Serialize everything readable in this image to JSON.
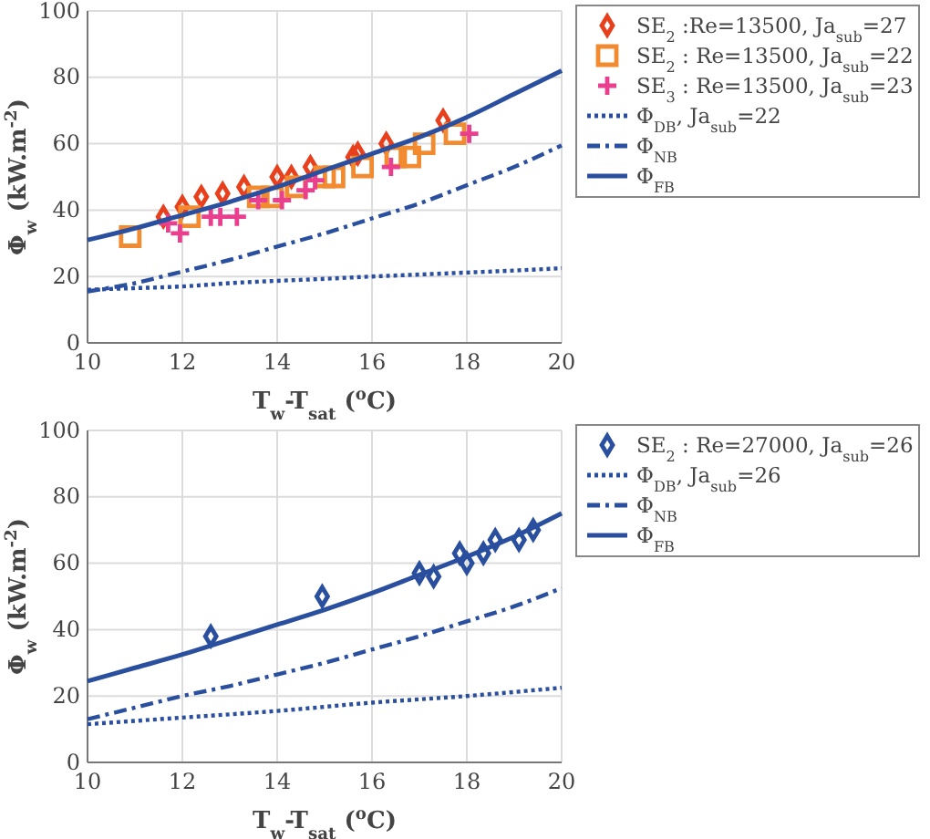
{
  "chart_data": [
    {
      "type": "scatter",
      "xlabel": "T$_{w}$-T$_{sat}$ ($^{o}$C)",
      "ylabel": "Φ$_{w}$ (kW.m$^{-2}$)",
      "xlim": [
        10,
        20
      ],
      "ylim": [
        0,
        100
      ],
      "xticks": [
        10,
        12,
        14,
        16,
        18,
        20
      ],
      "yticks": [
        0,
        20,
        40,
        60,
        80,
        100
      ],
      "grid": true,
      "legend": "top right",
      "series": [
        {
          "name": "SE$_{2}$ :Re=13500, Ja$_{sub}$=27",
          "marker": "diamond",
          "color": "#e8401c",
          "x": [
            11.6,
            12.0,
            12.4,
            12.85,
            13.3,
            14.0,
            14.3,
            14.7,
            15.6,
            15.7,
            16.3,
            17.5
          ],
          "values": [
            38,
            41,
            44,
            45,
            47,
            50,
            50,
            53,
            56,
            57,
            60,
            67
          ]
        },
        {
          "name": "SE$_{2}$ : Re=13500, Ja$_{sub}$=22",
          "marker": "square",
          "color": "#f28a30",
          "x": [
            10.9,
            12.15,
            13.6,
            13.9,
            14.4,
            15.0,
            15.2,
            15.8,
            16.5,
            16.8,
            17.1,
            17.75
          ],
          "values": [
            32,
            38,
            44,
            44,
            47,
            50,
            50,
            53,
            56,
            56,
            60,
            63
          ]
        },
        {
          "name": "SE$_{3}$ : Re=13500, Ja$_{sub}$=23",
          "marker": "cross",
          "color": "#ea3f8f",
          "x": [
            11.7,
            11.95,
            12.6,
            12.8,
            13.15,
            13.6,
            14.1,
            14.6,
            14.8,
            16.4,
            18.05
          ],
          "values": [
            36,
            33,
            38,
            38,
            38,
            43,
            43,
            46,
            49,
            53,
            63
          ]
        },
        {
          "name": "Φ$_{DB}$, Ja$_{sub}$=22",
          "type": "line",
          "line_style": "dotted",
          "color": "#2a4f9e",
          "x": [
            10,
            11,
            12,
            13,
            14,
            15,
            16,
            17,
            18,
            19,
            20
          ],
          "values": [
            16,
            16.5,
            17,
            18,
            18.7,
            19.3,
            20,
            20.6,
            21.2,
            21.8,
            22.5
          ]
        },
        {
          "name": "Φ$_{NB}$",
          "type": "line",
          "line_style": "dashed",
          "color": "#2a4f9e",
          "x": [
            10,
            11,
            12,
            13,
            14,
            15,
            16,
            17,
            18,
            19,
            20
          ],
          "values": [
            15.5,
            18,
            21.5,
            25,
            29,
            33,
            37.5,
            42,
            47.5,
            53,
            59.5
          ]
        },
        {
          "name": "Φ$_{FB}$",
          "type": "line",
          "line_style": "solid",
          "color": "#2a4f9e",
          "x": [
            10,
            11,
            12,
            13,
            14,
            15,
            16,
            17,
            18,
            19,
            20
          ],
          "values": [
            31,
            34.5,
            38.5,
            42.5,
            47,
            52,
            57,
            62,
            68,
            75,
            82
          ]
        }
      ]
    },
    {
      "type": "scatter",
      "xlabel": "T$_{w}$-T$_{sat}$ ($^{o}$C)",
      "ylabel": "Φ$_{w}$ (kW.m$^{-2}$)",
      "xlim": [
        10,
        20
      ],
      "ylim": [
        0,
        100
      ],
      "xticks": [
        10,
        12,
        14,
        16,
        18,
        20
      ],
      "yticks": [
        0,
        20,
        40,
        60,
        80,
        100
      ],
      "grid": true,
      "legend": "top right",
      "series": [
        {
          "name": "SE$_{2}$ : Re=27000, Ja$_{sub}$=26",
          "marker": "diamond",
          "color": "#2a4f9e",
          "x": [
            12.6,
            14.95,
            17.0,
            17.3,
            17.85,
            18.0,
            18.35,
            18.6,
            19.1,
            19.4
          ],
          "values": [
            38,
            50,
            57,
            56,
            63,
            60,
            63,
            67,
            67,
            70
          ]
        },
        {
          "name": "Φ$_{DB}$, Ja$_{sub}$=26",
          "type": "line",
          "line_style": "dotted",
          "color": "#2a4f9e",
          "x": [
            10,
            12,
            14,
            16,
            18,
            20
          ],
          "values": [
            11.5,
            13.5,
            15.5,
            18,
            20,
            22.5
          ]
        },
        {
          "name": "Φ$_{NB}$",
          "type": "line",
          "line_style": "dashed",
          "color": "#2a4f9e",
          "x": [
            10,
            11,
            12,
            13,
            14,
            15,
            16,
            17,
            18,
            19,
            20
          ],
          "values": [
            13,
            16.5,
            20,
            23,
            26.5,
            30,
            34,
            38,
            42.5,
            47,
            52.5
          ]
        },
        {
          "name": "Φ$_{FB}$",
          "type": "line",
          "line_style": "solid",
          "color": "#2a4f9e",
          "x": [
            10,
            11,
            12,
            13,
            14,
            15,
            16,
            17,
            18,
            19,
            20
          ],
          "values": [
            24.5,
            28.5,
            32.5,
            37,
            41.5,
            46,
            51,
            56.5,
            62,
            68,
            75
          ]
        }
      ]
    }
  ]
}
